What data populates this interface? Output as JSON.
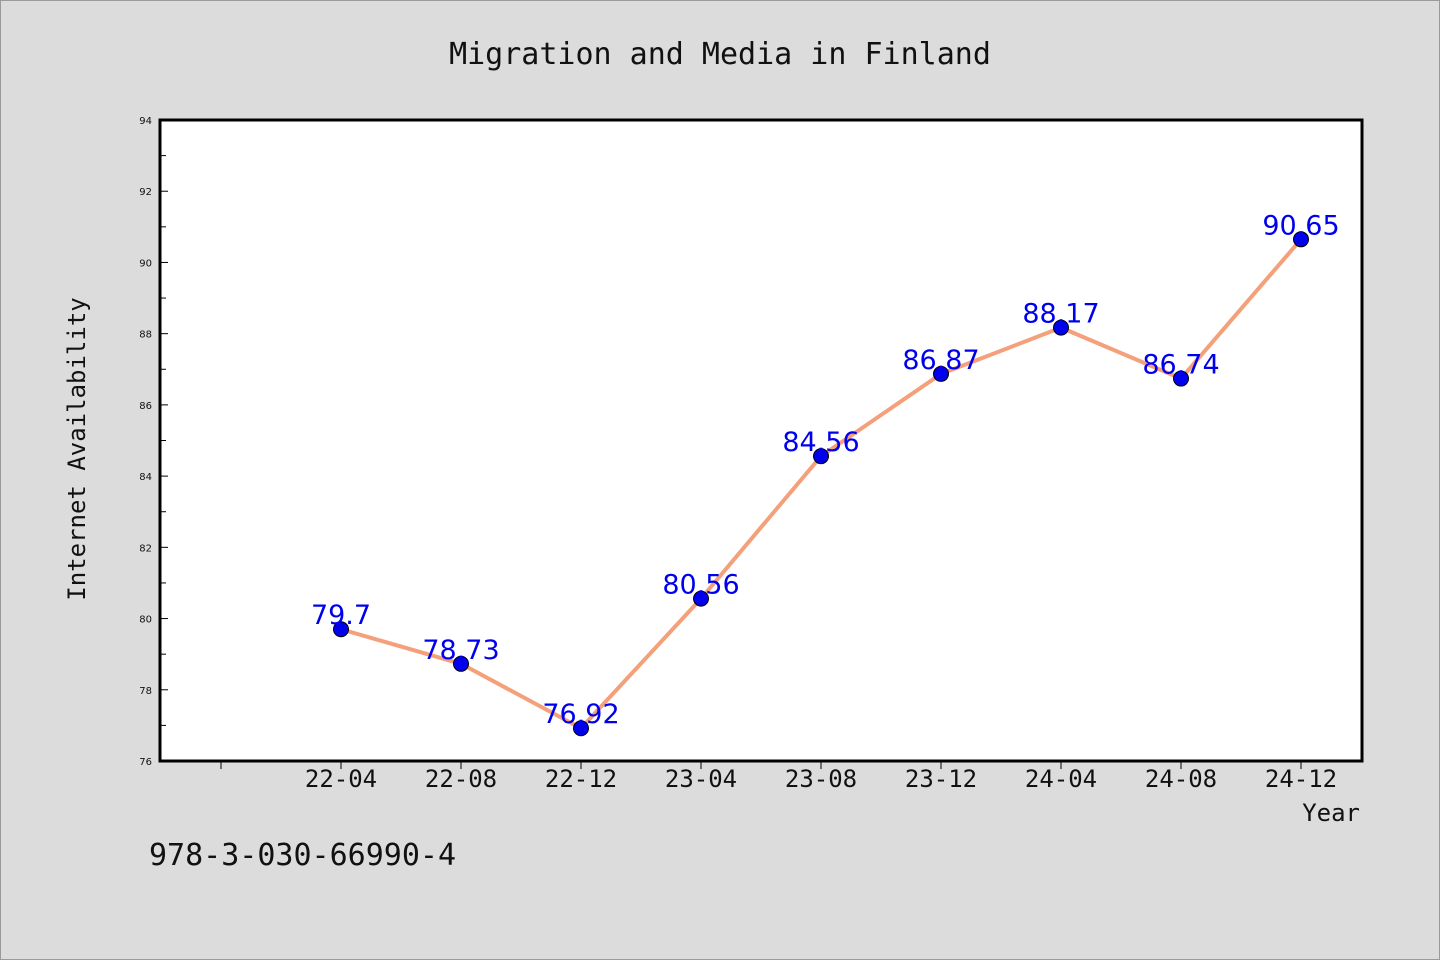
{
  "chart_data": {
    "type": "line",
    "title": "Migration and Media in Finland",
    "xlabel": "Year",
    "ylabel": "Internet Availability",
    "categories": [
      "22-04",
      "22-08",
      "22-12",
      "23-04",
      "23-08",
      "23-12",
      "24-04",
      "24-08",
      "24-12"
    ],
    "series": [
      {
        "values": [
          79.7,
          78.73,
          76.92,
          80.56,
          84.56,
          86.87,
          88.17,
          86.74,
          90.65
        ],
        "line_color": "#f4a07a",
        "marker_color": "#0000ee"
      }
    ],
    "data_labels": [
      "79.7",
      "78.73",
      "76.92",
      "80.56",
      "84.56",
      "86.87",
      "88.17",
      "86.74",
      "90.65"
    ],
    "ylim": [
      76,
      94
    ],
    "yticks": [
      "76",
      "78",
      "80",
      "82",
      "84",
      "86",
      "88",
      "90",
      "92",
      "94"
    ],
    "grid": false,
    "label_color": "#0000ee"
  },
  "footer": {
    "isbn": "978-3-030-66990-4"
  },
  "colors": {
    "background": "#dcdcdc",
    "plot_background": "#ffffff"
  }
}
